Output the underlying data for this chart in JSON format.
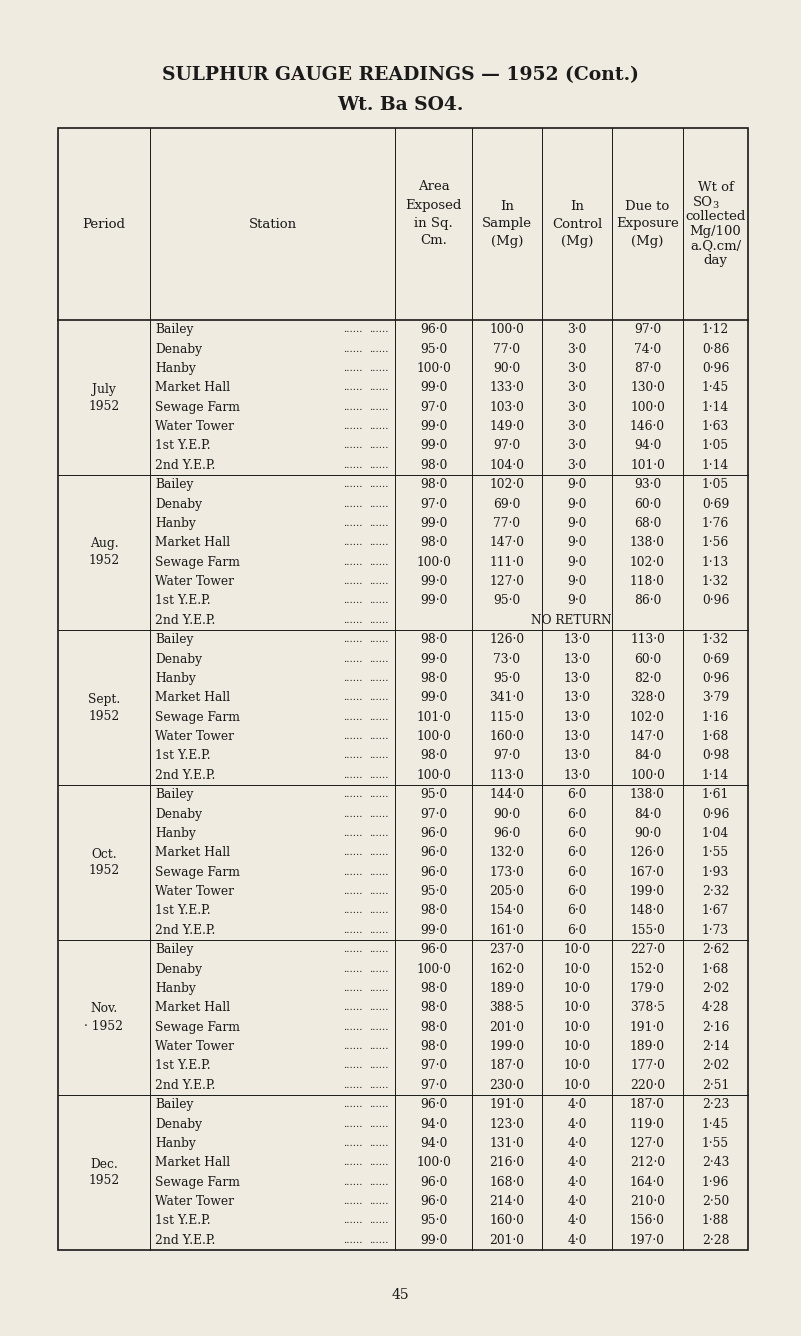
{
  "title_line1": "SULPHUR GAUGE READINGS — 1952 (Cont.)",
  "title_line2": "Wt. Ba SO4.",
  "bg_color": "#f0ebe0",
  "text_color": "#1a1a1a",
  "page_number": "45",
  "rows": [
    [
      "July\n1952",
      "Bailey",
      "96·0",
      "100·0",
      "3·0",
      "97·0",
      "1·12"
    ],
    [
      "",
      "Denaby",
      "95·0",
      "77·0",
      "3·0",
      "74·0",
      "0·86"
    ],
    [
      "",
      "Hanby",
      "100·0",
      "90·0",
      "3·0",
      "87·0",
      "0·96"
    ],
    [
      "",
      "Market Hall",
      "99·0",
      "133·0",
      "3·0",
      "130·0",
      "1·45"
    ],
    [
      "",
      "Sewage Farm",
      "97·0",
      "103·0",
      "3·0",
      "100·0",
      "1·14"
    ],
    [
      "",
      "Water Tower",
      "99·0",
      "149·0",
      "3·0",
      "146·0",
      "1·63"
    ],
    [
      "",
      "1st Y.E.P.",
      "99·0",
      "97·0",
      "3·0",
      "94·0",
      "1·05"
    ],
    [
      "",
      "2nd Y.E.P.",
      "98·0",
      "104·0",
      "3·0",
      "101·0",
      "1·14"
    ],
    [
      "Aug.\n1952",
      "Bailey",
      "98·0",
      "102·0",
      "9·0",
      "93·0",
      "1·05"
    ],
    [
      "",
      "Denaby",
      "97·0",
      "69·0",
      "9·0",
      "60·0",
      "0·69"
    ],
    [
      "",
      "Hanby",
      "99·0",
      "77·0",
      "9·0",
      "68·0",
      "1·76"
    ],
    [
      "",
      "Market Hall",
      "98·0",
      "147·0",
      "9·0",
      "138·0",
      "1·56"
    ],
    [
      "",
      "Sewage Farm",
      "100·0",
      "111·0",
      "9·0",
      "102·0",
      "1·13"
    ],
    [
      "",
      "Water Tower",
      "99·0",
      "127·0",
      "9·0",
      "118·0",
      "1·32"
    ],
    [
      "",
      "1st Y.E.P.",
      "99·0",
      "95·0",
      "9·0",
      "86·0",
      "0·96"
    ],
    [
      "",
      "2nd Y.E.P.",
      "NO_RETURN",
      "",
      "",
      "",
      ""
    ],
    [
      "Sept.\n1952",
      "Bailey",
      "98·0",
      "126·0",
      "13·0",
      "113·0",
      "1·32"
    ],
    [
      "",
      "Denaby",
      "99·0",
      "73·0",
      "13·0",
      "60·0",
      "0·69"
    ],
    [
      "",
      "Hanby",
      "98·0",
      "95·0",
      "13·0",
      "82·0",
      "0·96"
    ],
    [
      "",
      "Market Hall",
      "99·0",
      "341·0",
      "13·0",
      "328·0",
      "3·79"
    ],
    [
      "",
      "Sewage Farm",
      "101·0",
      "115·0",
      "13·0",
      "102·0",
      "1·16"
    ],
    [
      "",
      "Water Tower",
      "100·0",
      "160·0",
      "13·0",
      "147·0",
      "1·68"
    ],
    [
      "",
      "1st Y.E.P.",
      "98·0",
      "97·0",
      "13·0",
      "84·0",
      "0·98"
    ],
    [
      "",
      "2nd Y.E.P.",
      "100·0",
      "113·0",
      "13·0",
      "100·0",
      "1·14"
    ],
    [
      "Oct.\n1952",
      "Bailey",
      "95·0",
      "144·0",
      "6·0",
      "138·0",
      "1·61"
    ],
    [
      "",
      "Denaby",
      "97·0",
      "90·0",
      "6·0",
      "84·0",
      "0·96"
    ],
    [
      "",
      "Hanby",
      "96·0",
      "96·0",
      "6·0",
      "90·0",
      "1·04"
    ],
    [
      "",
      "Market Hall",
      "96·0",
      "132·0",
      "6·0",
      "126·0",
      "1·55"
    ],
    [
      "",
      "Sewage Farm",
      "96·0",
      "173·0",
      "6·0",
      "167·0",
      "1·93"
    ],
    [
      "",
      "Water Tower",
      "95·0",
      "205·0",
      "6·0",
      "199·0",
      "2·32"
    ],
    [
      "",
      "1st Y.E.P.",
      "98·0",
      "154·0",
      "6·0",
      "148·0",
      "1·67"
    ],
    [
      "",
      "2nd Y.E.P.",
      "99·0",
      "161·0",
      "6·0",
      "155·0",
      "1·73"
    ],
    [
      "Nov.\n· 1952",
      "Bailey",
      "96·0",
      "237·0",
      "10·0",
      "227·0",
      "2·62"
    ],
    [
      "",
      "Denaby",
      "100·0",
      "162·0",
      "10·0",
      "152·0",
      "1·68"
    ],
    [
      "",
      "Hanby",
      "98·0",
      "189·0",
      "10·0",
      "179·0",
      "2·02"
    ],
    [
      "",
      "Market Hall",
      "98·0",
      "388·5",
      "10·0",
      "378·5",
      "4·28"
    ],
    [
      "",
      "Sewage Farm",
      "98·0",
      "201·0",
      "10·0",
      "191·0",
      "2·16"
    ],
    [
      "",
      "Water Tower",
      "98·0",
      "199·0",
      "10·0",
      "189·0",
      "2·14"
    ],
    [
      "",
      "1st Y.E.P.",
      "97·0",
      "187·0",
      "10·0",
      "177·0",
      "2·02"
    ],
    [
      "",
      "2nd Y.E.P.",
      "97·0",
      "230·0",
      "10·0",
      "220·0",
      "2·51"
    ],
    [
      "Dec.\n1952",
      "Bailey",
      "96·0",
      "191·0",
      "4·0",
      "187·0",
      "2·23"
    ],
    [
      "",
      "Denaby",
      "94·0",
      "123·0",
      "4·0",
      "119·0",
      "1·45"
    ],
    [
      "",
      "Hanby",
      "94·0",
      "131·0",
      "4·0",
      "127·0",
      "1·55"
    ],
    [
      "",
      "Market Hall",
      "100·0",
      "216·0",
      "4·0",
      "212·0",
      "2·43"
    ],
    [
      "",
      "Sewage Farm",
      "96·0",
      "168·0",
      "4·0",
      "164·0",
      "1·96"
    ],
    [
      "",
      "Water Tower",
      "96·0",
      "214·0",
      "4·0",
      "210·0",
      "2·50"
    ],
    [
      "",
      "1st Y.E.P.",
      "95·0",
      "160·0",
      "4·0",
      "156·0",
      "1·88"
    ],
    [
      "",
      "2nd Y.E.P.",
      "99·0",
      "201·0",
      "4·0",
      "197·0",
      "2·28"
    ]
  ]
}
